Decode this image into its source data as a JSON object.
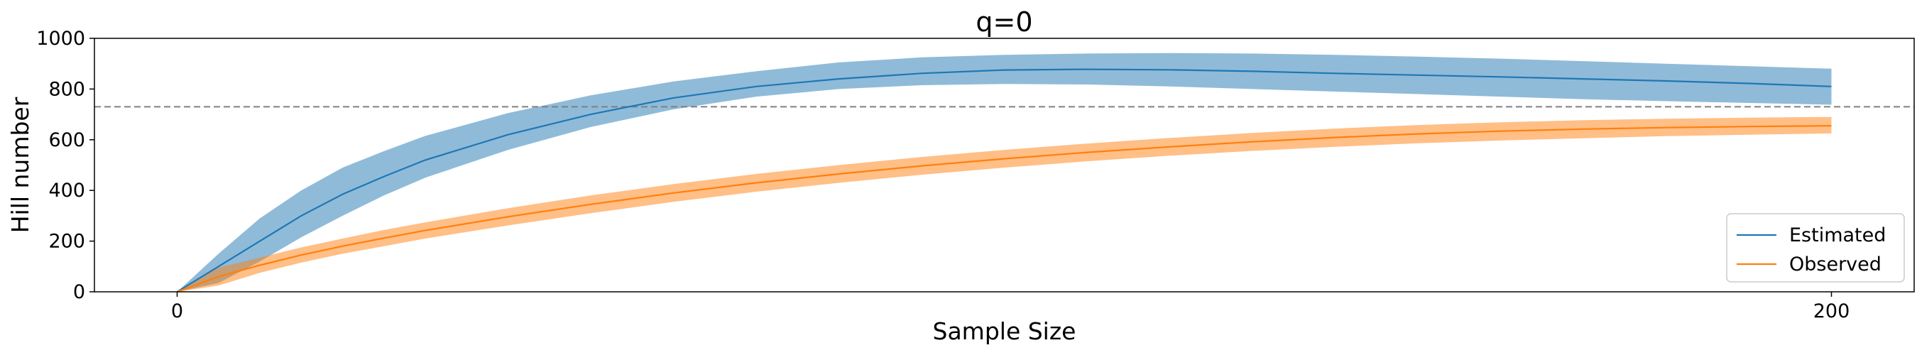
{
  "chart_data": {
    "type": "line",
    "title": "q=0",
    "xlabel": "Sample Size",
    "ylabel": "Hill number",
    "xlim": [
      -10,
      210
    ],
    "ylim": [
      0,
      1000
    ],
    "xticks": [
      0,
      200
    ],
    "yticks": [
      0,
      200,
      400,
      600,
      800,
      1000
    ],
    "grid": false,
    "legend_position": "bottom-right",
    "reference_line": {
      "y": 730,
      "style": "dashed",
      "color": "#808080"
    },
    "series": [
      {
        "name": "Estimated",
        "color": "#1f77b4",
        "band_color": "#1f77b4",
        "x": [
          0,
          5,
          10,
          15,
          20,
          25,
          30,
          40,
          50,
          60,
          70,
          80,
          90,
          100,
          110,
          120,
          130,
          140,
          150,
          160,
          170,
          180,
          190,
          200
        ],
        "y": [
          0,
          100,
          200,
          300,
          385,
          455,
          520,
          620,
          700,
          765,
          810,
          840,
          862,
          875,
          878,
          876,
          870,
          862,
          855,
          848,
          840,
          832,
          822,
          810
        ],
        "y_lower": [
          0,
          35,
          120,
          215,
          300,
          380,
          450,
          560,
          650,
          720,
          770,
          800,
          815,
          820,
          818,
          810,
          800,
          790,
          780,
          770,
          760,
          752,
          745,
          738
        ],
        "y_upper": [
          0,
          150,
          290,
          400,
          490,
          555,
          615,
          705,
          775,
          830,
          870,
          905,
          925,
          935,
          940,
          942,
          940,
          935,
          928,
          920,
          910,
          900,
          890,
          880
        ]
      },
      {
        "name": "Observed",
        "color": "#ff7f0e",
        "band_color": "#ff7f0e",
        "x": [
          0,
          5,
          10,
          15,
          20,
          25,
          30,
          40,
          50,
          60,
          70,
          80,
          90,
          100,
          110,
          120,
          130,
          140,
          150,
          160,
          170,
          180,
          190,
          200
        ],
        "y": [
          0,
          60,
          105,
          145,
          180,
          212,
          242,
          296,
          345,
          390,
          430,
          465,
          497,
          525,
          550,
          572,
          592,
          609,
          623,
          634,
          642,
          648,
          652,
          655
        ],
        "y_lower": [
          0,
          25,
          75,
          115,
          150,
          180,
          210,
          262,
          310,
          355,
          395,
          430,
          462,
          490,
          515,
          537,
          556,
          572,
          586,
          597,
          606,
          614,
          620,
          625
        ],
        "y_upper": [
          0,
          95,
          135,
          175,
          210,
          244,
          274,
          330,
          380,
          425,
          465,
          500,
          532,
          560,
          585,
          607,
          627,
          644,
          658,
          669,
          677,
          683,
          687,
          690
        ]
      }
    ]
  }
}
